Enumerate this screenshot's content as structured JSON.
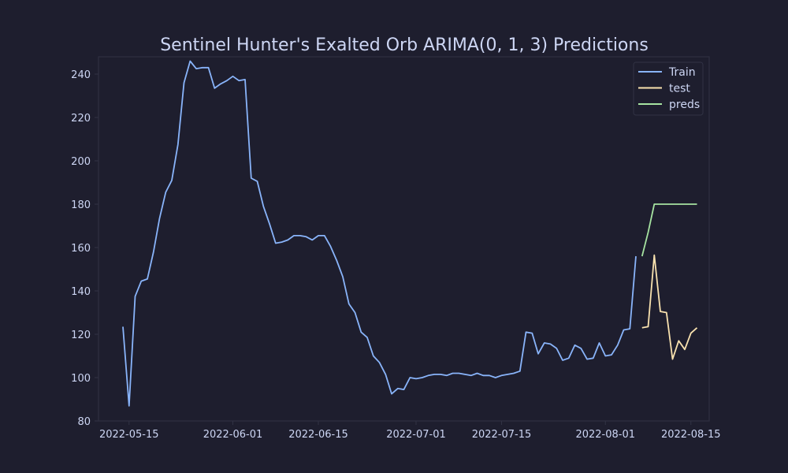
{
  "chart_data": {
    "type": "line",
    "title": "Sentinel Hunter's Exalted Orb ARIMA(0, 1, 3) Predictions",
    "xlabel": "",
    "ylabel": "",
    "xlim": [
      "2022-05-10",
      "2022-08-18"
    ],
    "ylim": [
      80,
      248
    ],
    "x_ticks": [
      "2022-05-15",
      "2022-06-01",
      "2022-06-15",
      "2022-07-01",
      "2022-07-15",
      "2022-08-01",
      "2022-08-15"
    ],
    "y_ticks": [
      80,
      100,
      120,
      140,
      160,
      180,
      200,
      220,
      240
    ],
    "legend_position": "top-right",
    "grid": false,
    "colors": {
      "background": "#1e1e2e",
      "axis": "#313244",
      "text": "#cdd6f4",
      "Train": "#89b4fa",
      "test": "#f9e2af",
      "preds": "#a6e3a1"
    },
    "series": [
      {
        "name": "Train",
        "x": [
          "2022-05-14",
          "2022-05-15",
          "2022-05-16",
          "2022-05-17",
          "2022-05-18",
          "2022-05-19",
          "2022-05-20",
          "2022-05-21",
          "2022-05-22",
          "2022-05-23",
          "2022-05-24",
          "2022-05-25",
          "2022-05-26",
          "2022-05-27",
          "2022-05-28",
          "2022-05-29",
          "2022-05-30",
          "2022-05-31",
          "2022-06-01",
          "2022-06-02",
          "2022-06-03",
          "2022-06-04",
          "2022-06-05",
          "2022-06-06",
          "2022-06-07",
          "2022-06-08",
          "2022-06-09",
          "2022-06-10",
          "2022-06-11",
          "2022-06-12",
          "2022-06-13",
          "2022-06-14",
          "2022-06-15",
          "2022-06-16",
          "2022-06-17",
          "2022-06-18",
          "2022-06-19",
          "2022-06-20",
          "2022-06-21",
          "2022-06-22",
          "2022-06-23",
          "2022-06-24",
          "2022-06-25",
          "2022-06-26",
          "2022-06-27",
          "2022-06-28",
          "2022-06-29",
          "2022-06-30",
          "2022-07-01",
          "2022-07-02",
          "2022-07-03",
          "2022-07-04",
          "2022-07-05",
          "2022-07-06",
          "2022-07-07",
          "2022-07-08",
          "2022-07-09",
          "2022-07-10",
          "2022-07-11",
          "2022-07-12",
          "2022-07-13",
          "2022-07-14",
          "2022-07-15",
          "2022-07-16",
          "2022-07-17",
          "2022-07-18",
          "2022-07-19",
          "2022-07-20",
          "2022-07-21",
          "2022-07-22",
          "2022-07-23",
          "2022-07-24",
          "2022-07-25",
          "2022-07-26",
          "2022-07-27",
          "2022-07-28",
          "2022-07-29",
          "2022-07-30",
          "2022-07-31",
          "2022-08-01",
          "2022-08-02",
          "2022-08-03",
          "2022-08-04",
          "2022-08-05",
          "2022-08-06"
        ],
        "values": [
          123.5,
          87,
          137.5,
          144.5,
          145.5,
          158,
          173.5,
          185.5,
          191,
          207.5,
          236,
          246,
          242.5,
          243,
          243,
          233.5,
          235.5,
          237,
          239,
          237,
          237.5,
          192,
          190.5,
          179,
          171,
          162,
          162.5,
          163.5,
          165.5,
          165.5,
          165,
          163.5,
          165.5,
          165.5,
          160.5,
          154,
          146.5,
          134,
          130,
          121,
          118.5,
          110,
          107,
          101.5,
          92.5,
          95,
          94.5,
          100,
          99.5,
          100,
          101,
          101.5,
          101.5,
          101,
          102,
          102,
          101.5,
          101,
          102,
          101,
          101,
          100,
          101,
          101.5,
          102,
          103,
          121,
          120.5,
          111,
          116,
          115.5,
          113.5,
          108,
          109,
          115,
          113.5,
          108.5,
          109,
          116,
          110,
          110.5,
          115,
          122,
          122.5,
          156
        ]
      },
      {
        "name": "test",
        "x": [
          "2022-08-07",
          "2022-08-08",
          "2022-08-09",
          "2022-08-10",
          "2022-08-11",
          "2022-08-12",
          "2022-08-13",
          "2022-08-14",
          "2022-08-15",
          "2022-08-16"
        ],
        "values": [
          123,
          123.5,
          156.5,
          130.5,
          130,
          108.5,
          117,
          113,
          120.5,
          123
        ]
      },
      {
        "name": "preds",
        "x": [
          "2022-08-07",
          "2022-08-08",
          "2022-08-09",
          "2022-08-10",
          "2022-08-11",
          "2022-08-12",
          "2022-08-13",
          "2022-08-14",
          "2022-08-15",
          "2022-08-16"
        ],
        "values": [
          156,
          167,
          180,
          180,
          180,
          180,
          180,
          180,
          180,
          180
        ]
      }
    ]
  }
}
